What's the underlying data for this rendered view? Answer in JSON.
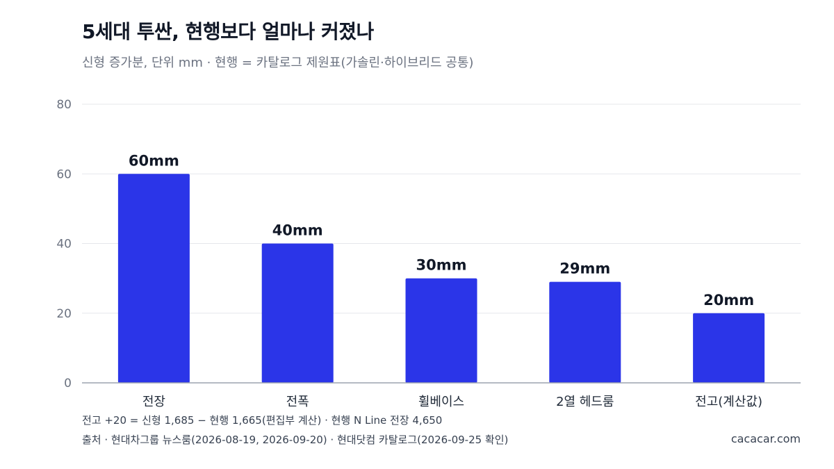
{
  "header": {
    "title": "5세대 투싼, 현행보다 얼마나 커졌나",
    "subtitle": "신형 증가분, 단위 mm · 현행 = 카탈로그 제원표(가솔린·하이브리드 공통)"
  },
  "footer": {
    "note": "전고 +20 = 신형 1,685 − 현행 1,665(편집부 계산) · 현행 N Line 전장 4,650",
    "source": "출처 · 현대차그룹 뉴스룸(2026-08-19, 2026-09-20) · 현대닷컴 카탈로그(2026-09-25 확인)",
    "brand": "cacacar.com"
  },
  "colors": {
    "bar": "#2b35e8",
    "grid": "#e5e7eb",
    "axis": "#9ca3af",
    "tick_text": "#6b7280",
    "label_text": "#111827"
  },
  "chart_data": {
    "type": "bar",
    "categories": [
      "전장",
      "전폭",
      "휠베이스",
      "2열 헤드룸",
      "전고(계산값)"
    ],
    "values": [
      60,
      40,
      30,
      29,
      20
    ],
    "data_labels": [
      "60mm",
      "40mm",
      "30mm",
      "29mm",
      "20mm"
    ],
    "yticks": [
      0,
      20,
      40,
      60,
      80
    ],
    "ylim": [
      0,
      80
    ],
    "grid": true,
    "legend": "none"
  }
}
